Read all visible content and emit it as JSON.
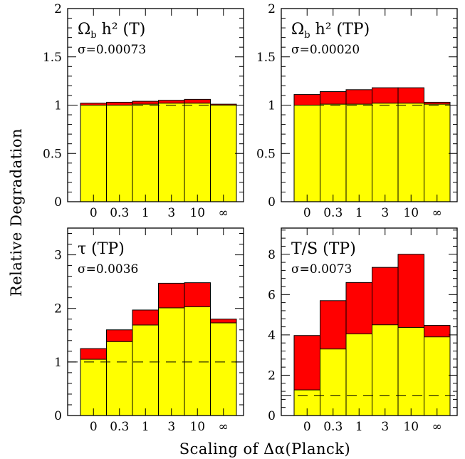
{
  "figure": {
    "ylabel": "Relative Degradation",
    "xlabel": "Scaling of Δα(Planck)",
    "bar_colors": {
      "total": "#ff0000",
      "base": "#ffff00",
      "edge": "#000000"
    }
  },
  "chart_data": [
    {
      "type": "bar",
      "title": "Ω_b h² (T)",
      "subtitle": "σ=0.00073",
      "categories": [
        "0",
        "0.3",
        "1",
        "3",
        "10",
        "∞"
      ],
      "series": [
        {
          "values": [
            1.02,
            1.03,
            1.04,
            1.05,
            1.06,
            1.01
          ]
        },
        {
          "values": [
            1.0,
            1.0,
            1.01,
            1.02,
            1.02,
            1.0
          ]
        }
      ],
      "reference_line": 1,
      "ylim": [
        0,
        2
      ],
      "yticks": [
        0,
        0.5,
        1,
        1.5,
        2
      ],
      "ytick_labels": [
        "0",
        "0.5",
        "1",
        "1.5",
        "2"
      ]
    },
    {
      "type": "bar",
      "title": "Ω_b h² (TP)",
      "subtitle": "σ=0.00020",
      "categories": [
        "0",
        "0.3",
        "1",
        "3",
        "10",
        "∞"
      ],
      "series": [
        {
          "values": [
            1.11,
            1.14,
            1.16,
            1.18,
            1.18,
            1.03
          ]
        },
        {
          "values": [
            1.0,
            1.01,
            1.01,
            1.02,
            1.02,
            1.01
          ]
        }
      ],
      "reference_line": 1,
      "ylim": [
        0,
        2
      ],
      "yticks": [
        0,
        0.5,
        1,
        1.5,
        2
      ],
      "ytick_labels": [
        "0",
        "0.5",
        "1",
        "1.5",
        "2"
      ]
    },
    {
      "type": "bar",
      "title": "τ (TP)",
      "subtitle": "σ=0.0036",
      "categories": [
        "0",
        "0.3",
        "1",
        "3",
        "10",
        "∞"
      ],
      "series": [
        {
          "values": [
            1.25,
            1.6,
            1.97,
            2.47,
            2.48,
            1.8
          ]
        },
        {
          "values": [
            1.05,
            1.38,
            1.69,
            2.01,
            2.03,
            1.73
          ]
        }
      ],
      "reference_line": 1,
      "ylim": [
        0,
        3.5
      ],
      "yticks": [
        0,
        1,
        2,
        3
      ],
      "ytick_labels": [
        "0",
        "1",
        "2",
        "3"
      ]
    },
    {
      "type": "bar",
      "title": "T/S (TP)",
      "subtitle": "σ=0.0073",
      "categories": [
        "0",
        "0.3",
        "1",
        "3",
        "10",
        "∞"
      ],
      "series": [
        {
          "values": [
            3.97,
            5.7,
            6.6,
            7.35,
            8.0,
            4.47
          ]
        },
        {
          "values": [
            1.27,
            3.3,
            4.05,
            4.5,
            4.37,
            3.9
          ]
        }
      ],
      "reference_line": 1,
      "ylim": [
        0,
        9.3
      ],
      "yticks": [
        0,
        2,
        4,
        6,
        8
      ],
      "ytick_labels": [
        "0",
        "2",
        "4",
        "6",
        "8"
      ]
    }
  ]
}
